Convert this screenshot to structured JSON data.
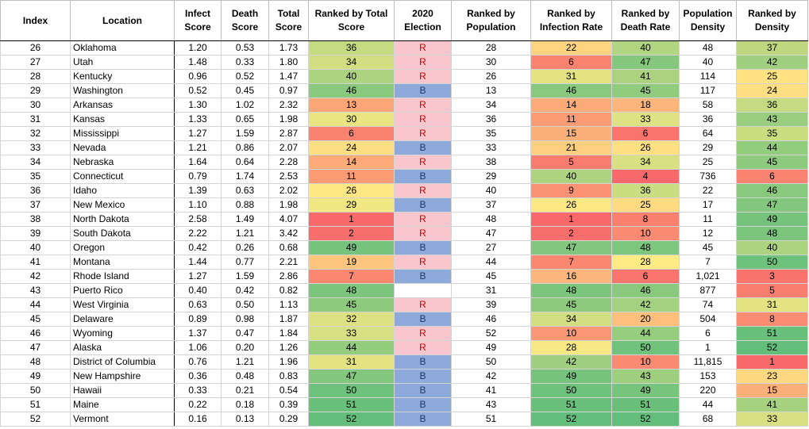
{
  "table": {
    "headers": [
      "Index",
      "Location",
      "Infect Score",
      "Death Score",
      "Total Score",
      "Ranked by Total Score",
      "2020 Election",
      "Ranked by Population",
      "Ranked by Infection Rate",
      "Ranked by Death Rate",
      "Population Density",
      "Ranked by Density"
    ],
    "election_colors": {
      "R": "#f8c6cc",
      "B": "#8eaadb"
    },
    "rows": [
      [
        26,
        "Oklahoma",
        "1.20",
        "0.53",
        "1.73",
        36,
        "R",
        28,
        22,
        40,
        48,
        37
      ],
      [
        27,
        "Utah",
        "1.48",
        "0.33",
        "1.80",
        34,
        "R",
        30,
        6,
        47,
        40,
        42
      ],
      [
        28,
        "Kentucky",
        "0.96",
        "0.52",
        "1.47",
        40,
        "R",
        26,
        31,
        41,
        114,
        25
      ],
      [
        29,
        "Washington",
        "0.52",
        "0.45",
        "0.97",
        46,
        "B",
        13,
        46,
        45,
        117,
        24
      ],
      [
        30,
        "Arkansas",
        "1.30",
        "1.02",
        "2.32",
        13,
        "R",
        34,
        14,
        18,
        58,
        36
      ],
      [
        31,
        "Kansas",
        "1.33",
        "0.65",
        "1.98",
        30,
        "R",
        36,
        11,
        33,
        36,
        43
      ],
      [
        32,
        "Mississippi",
        "1.27",
        "1.59",
        "2.87",
        6,
        "R",
        35,
        15,
        6,
        64,
        35
      ],
      [
        33,
        "Nevada",
        "1.21",
        "0.86",
        "2.07",
        24,
        "B",
        33,
        21,
        26,
        29,
        44
      ],
      [
        34,
        "Nebraska",
        "1.64",
        "0.64",
        "2.28",
        14,
        "R",
        38,
        5,
        34,
        25,
        45
      ],
      [
        35,
        "Connecticut",
        "0.79",
        "1.74",
        "2.53",
        11,
        "B",
        29,
        40,
        4,
        736,
        6
      ],
      [
        36,
        "Idaho",
        "1.39",
        "0.63",
        "2.02",
        26,
        "R",
        40,
        9,
        36,
        22,
        46
      ],
      [
        37,
        "New Mexico",
        "1.10",
        "0.88",
        "1.98",
        29,
        "B",
        37,
        26,
        25,
        17,
        47
      ],
      [
        38,
        "North Dakota",
        "2.58",
        "1.49",
        "4.07",
        1,
        "R",
        48,
        1,
        8,
        11,
        49
      ],
      [
        39,
        "South Dakota",
        "2.22",
        "1.21",
        "3.42",
        2,
        "R",
        47,
        2,
        10,
        12,
        48
      ],
      [
        40,
        "Oregon",
        "0.42",
        "0.26",
        "0.68",
        49,
        "B",
        27,
        47,
        48,
        45,
        40
      ],
      [
        41,
        "Montana",
        "1.44",
        "0.77",
        "2.21",
        19,
        "R",
        44,
        7,
        28,
        7,
        50
      ],
      [
        42,
        "Rhode Island",
        "1.27",
        "1.59",
        "2.86",
        7,
        "B",
        45,
        16,
        6,
        "1,021",
        3
      ],
      [
        43,
        "Puerto Rico",
        "0.40",
        "0.42",
        "0.82",
        48,
        null,
        31,
        48,
        46,
        877,
        5
      ],
      [
        44,
        "West Virginia",
        "0.63",
        "0.50",
        "1.13",
        45,
        "R",
        39,
        45,
        42,
        74,
        31
      ],
      [
        45,
        "Delaware",
        "0.89",
        "0.98",
        "1.87",
        32,
        "B",
        46,
        34,
        20,
        504,
        8
      ],
      [
        46,
        "Wyoming",
        "1.37",
        "0.47",
        "1.84",
        33,
        "R",
        52,
        10,
        44,
        6,
        51
      ],
      [
        47,
        "Alaska",
        "1.06",
        "0.20",
        "1.26",
        44,
        "R",
        49,
        28,
        50,
        1,
        52
      ],
      [
        48,
        "District of Columbia",
        "0.76",
        "1.21",
        "1.96",
        31,
        "B",
        50,
        42,
        10,
        "11,815",
        1
      ],
      [
        49,
        "New Hampshire",
        "0.36",
        "0.48",
        "0.83",
        47,
        "B",
        42,
        49,
        43,
        153,
        23
      ],
      [
        50,
        "Hawaii",
        "0.33",
        "0.21",
        "0.54",
        50,
        "B",
        41,
        50,
        49,
        220,
        15
      ],
      [
        51,
        "Maine",
        "0.22",
        "0.18",
        "0.39",
        51,
        "B",
        43,
        51,
        51,
        44,
        41
      ],
      [
        52,
        "Vermont",
        "0.16",
        "0.13",
        "0.29",
        52,
        "B",
        51,
        52,
        52,
        68,
        33
      ]
    ]
  }
}
